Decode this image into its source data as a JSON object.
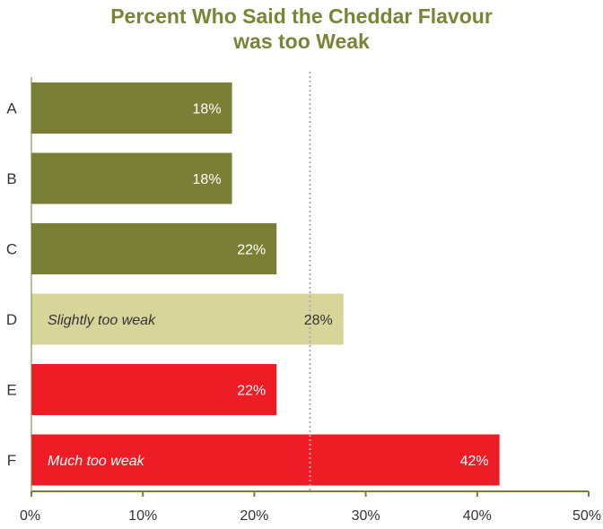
{
  "chart_data": {
    "type": "bar",
    "orientation": "horizontal",
    "title": [
      "Percent Who Said the Cheddar Flavour",
      "was too Weak"
    ],
    "categories": [
      "A",
      "B",
      "C",
      "D",
      "E",
      "F"
    ],
    "values": [
      18,
      18,
      22,
      28,
      22,
      42
    ],
    "value_labels": [
      "18%",
      "18%",
      "22%",
      "28%",
      "22%",
      "42%"
    ],
    "bar_annotations": [
      "",
      "",
      "",
      "Slightly too weak",
      "",
      "Much too weak"
    ],
    "bar_colors": [
      "#7b7f35",
      "#7b7f35",
      "#7b7f35",
      "#d7d59a",
      "#ee1d25",
      "#ee1d25"
    ],
    "label_colors": [
      "#ffffff",
      "#ffffff",
      "#ffffff",
      "#333333",
      "#ffffff",
      "#ffffff"
    ],
    "xlim": [
      0,
      50
    ],
    "xticks": [
      0,
      10,
      20,
      30,
      40,
      50
    ],
    "xtick_labels": [
      "0%",
      "10%",
      "20%",
      "30%",
      "40%",
      "50%"
    ],
    "reference_line": {
      "value": 25,
      "style": "dotted",
      "color": "#aaaaaa"
    },
    "grid": false,
    "legend": "none",
    "axis_color": "#7b7f35",
    "title_color": "#7b8436"
  }
}
